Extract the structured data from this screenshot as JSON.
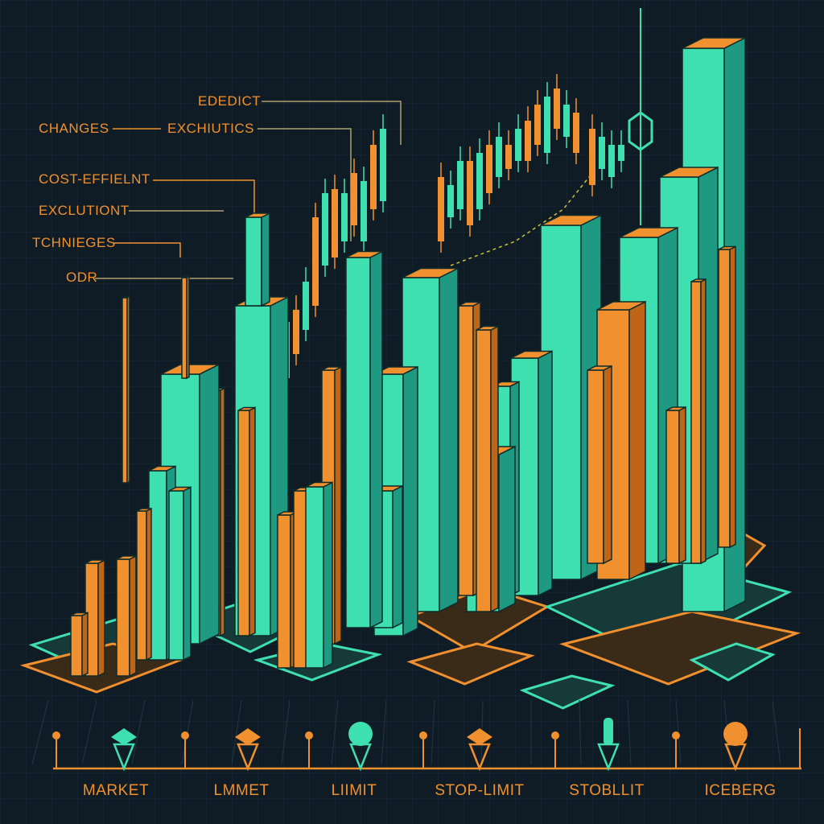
{
  "colors": {
    "background": "#101c25",
    "teal": "#3fe0b0",
    "teal_dark": "#1f9a82",
    "teal_light": "#7ef2cd",
    "orange": "#f0902e",
    "orange_dark": "#c06418",
    "grid": "#1e3340"
  },
  "callouts": [
    {
      "id": "edeict",
      "text": "EDEDICT"
    },
    {
      "id": "changes",
      "text": "CHANGES"
    },
    {
      "id": "exchutics",
      "text": "EXCHIUTICS"
    },
    {
      "id": "cost",
      "text": "COST-EFFIELNT"
    },
    {
      "id": "exclution",
      "text": "EXCLUTIONT"
    },
    {
      "id": "tchnieges",
      "text": "TCHNIEGES"
    },
    {
      "id": "odr",
      "text": "ODR"
    }
  ],
  "order_types": [
    {
      "label": "MARKET",
      "icon": "diamond-pin-icon"
    },
    {
      "label": "LMMET",
      "icon": "diamond-pin-icon"
    },
    {
      "label": "LIIMIT",
      "icon": "circle-pin-icon"
    },
    {
      "label": "STOP-LIMIT",
      "icon": "diamond-pin-icon"
    },
    {
      "label": "STOBLLIT",
      "icon": "bar-pin-icon"
    },
    {
      "label": "ICEBERG",
      "icon": "circle-pin-icon"
    }
  ],
  "icons": {
    "top_marker": "hexagon-marker-icon"
  }
}
